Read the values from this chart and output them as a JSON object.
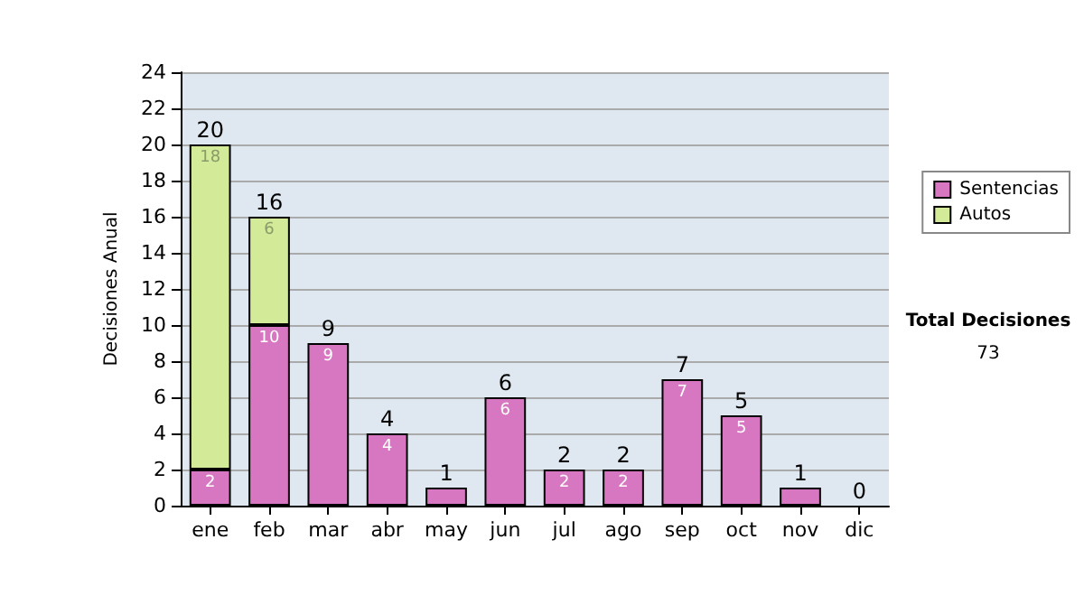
{
  "chart_data": {
    "type": "bar",
    "stacked": true,
    "ylabel": "Decisiones Anual",
    "categories": [
      "ene",
      "feb",
      "mar",
      "abr",
      "may",
      "jun",
      "jul",
      "ago",
      "sep",
      "oct",
      "nov",
      "dic"
    ],
    "series": [
      {
        "name": "Sentencias",
        "color": "#d877c1",
        "values": [
          2,
          10,
          9,
          4,
          1,
          6,
          2,
          2,
          7,
          5,
          1,
          0
        ],
        "value_labels": [
          "2",
          "10",
          "9",
          "4",
          null,
          "6",
          "2",
          "2",
          "7",
          "5",
          null,
          null
        ]
      },
      {
        "name": "Autos",
        "color": "#d3ea98",
        "values": [
          18,
          6,
          0,
          0,
          0,
          0,
          0,
          0,
          0,
          0,
          0,
          0
        ],
        "value_labels": [
          "18",
          "6",
          null,
          null,
          null,
          null,
          null,
          null,
          null,
          null,
          null,
          null
        ]
      }
    ],
    "totals": [
      "20",
      "16",
      "9",
      "4",
      "1",
      "6",
      "2",
      "2",
      "7",
      "5",
      "1",
      "0"
    ],
    "ylim": [
      0,
      24
    ],
    "yticks": [
      0,
      2,
      4,
      6,
      8,
      10,
      12,
      14,
      16,
      18,
      20,
      22,
      24
    ],
    "grid": "y",
    "legend": "right",
    "annotations": [
      "Total Decisiones",
      "73"
    ]
  }
}
